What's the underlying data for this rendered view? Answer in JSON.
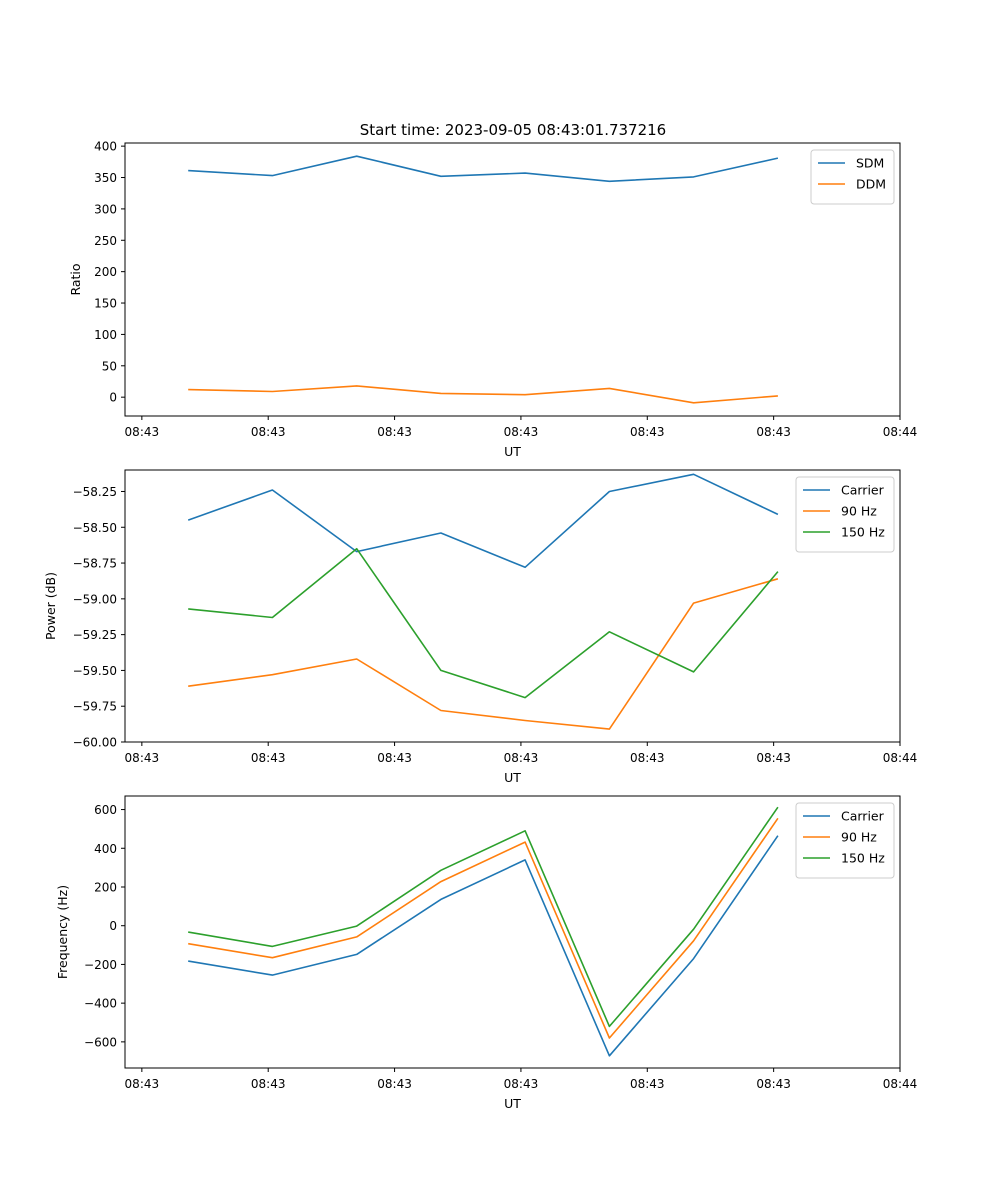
{
  "figure": {
    "title": "Start time: 2023-09-05 08:43:01.737216"
  },
  "colors": {
    "blue": "#1f77b4",
    "orange": "#ff7f0e",
    "green": "#2ca02c",
    "axis": "#000000",
    "legend_border": "#cccccc"
  },
  "chart_data": [
    {
      "type": "line",
      "xlabel": "UT",
      "ylabel": "Ratio",
      "x": [
        1,
        2,
        3,
        4,
        5,
        6,
        7,
        8
      ],
      "xlim": [
        0.25,
        9.45
      ],
      "xticks": [
        0.45,
        1.95,
        3.45,
        4.95,
        6.45,
        7.95,
        9.45
      ],
      "xtick_labels": [
        "08:43",
        "08:43",
        "08:43",
        "08:43",
        "08:43",
        "08:43",
        "08:44"
      ],
      "ylim": [
        -30,
        405
      ],
      "yticks": [
        0,
        50,
        100,
        150,
        200,
        250,
        300,
        350,
        400
      ],
      "ytick_labels": [
        "0",
        "50",
        "100",
        "150",
        "200",
        "250",
        "300",
        "350",
        "400"
      ],
      "legend": "top-right",
      "series": [
        {
          "name": "SDM",
          "color": "#1f77b4",
          "values": [
            361,
            353,
            384,
            352,
            357,
            344,
            351,
            381
          ]
        },
        {
          "name": "DDM",
          "color": "#ff7f0e",
          "values": [
            12,
            9,
            18,
            6,
            4,
            14,
            -9,
            2
          ]
        }
      ]
    },
    {
      "type": "line",
      "xlabel": "UT",
      "ylabel": "Power (dB)",
      "x": [
        1,
        2,
        3,
        4,
        5,
        6,
        7,
        8
      ],
      "xlim": [
        0.25,
        9.45
      ],
      "xticks": [
        0.45,
        1.95,
        3.45,
        4.95,
        6.45,
        7.95,
        9.45
      ],
      "xtick_labels": [
        "08:43",
        "08:43",
        "08:43",
        "08:43",
        "08:43",
        "08:43",
        "08:44"
      ],
      "ylim": [
        -60.0,
        -58.1
      ],
      "yticks": [
        -60.0,
        -59.75,
        -59.5,
        -59.25,
        -59.0,
        -58.75,
        -58.5,
        -58.25
      ],
      "ytick_labels": [
        "−60.00",
        "−59.75",
        "−59.50",
        "−59.25",
        "−59.00",
        "−58.75",
        "−58.50",
        "−58.25"
      ],
      "legend": "top-right",
      "series": [
        {
          "name": "Carrier",
          "color": "#1f77b4",
          "values": [
            -58.45,
            -58.24,
            -58.67,
            -58.54,
            -58.78,
            -58.25,
            -58.13,
            -58.41
          ]
        },
        {
          "name": "90 Hz",
          "color": "#ff7f0e",
          "values": [
            -59.61,
            -59.53,
            -59.42,
            -59.78,
            -59.85,
            -59.91,
            -59.03,
            -58.86
          ]
        },
        {
          "name": "150 Hz",
          "color": "#2ca02c",
          "values": [
            -59.07,
            -59.13,
            -58.65,
            -59.5,
            -59.69,
            -59.23,
            -59.51,
            -58.81
          ]
        }
      ]
    },
    {
      "type": "line",
      "xlabel": "UT",
      "ylabel": "Frequency (Hz)",
      "x": [
        1,
        2,
        3,
        4,
        5,
        6,
        7,
        8
      ],
      "xlim": [
        0.25,
        9.45
      ],
      "xticks": [
        0.45,
        1.95,
        3.45,
        4.95,
        6.45,
        7.95,
        9.45
      ],
      "xtick_labels": [
        "08:43",
        "08:43",
        "08:43",
        "08:43",
        "08:43",
        "08:43",
        "08:44"
      ],
      "ylim": [
        -735,
        670
      ],
      "yticks": [
        -600,
        -400,
        -200,
        0,
        200,
        400,
        600
      ],
      "ytick_labels": [
        "−600",
        "−400",
        "−200",
        "0",
        "200",
        "400",
        "600"
      ],
      "legend": "top-right",
      "series": [
        {
          "name": "Carrier",
          "color": "#1f77b4",
          "values": [
            -183,
            -255,
            -148,
            136,
            340,
            -672,
            -170,
            465
          ]
        },
        {
          "name": "90 Hz",
          "color": "#ff7f0e",
          "values": [
            -93,
            -165,
            -58,
            228,
            432,
            -580,
            -78,
            555
          ]
        },
        {
          "name": "150 Hz",
          "color": "#2ca02c",
          "values": [
            -33,
            -107,
            -2,
            286,
            490,
            -520,
            -18,
            612
          ]
        }
      ]
    }
  ]
}
